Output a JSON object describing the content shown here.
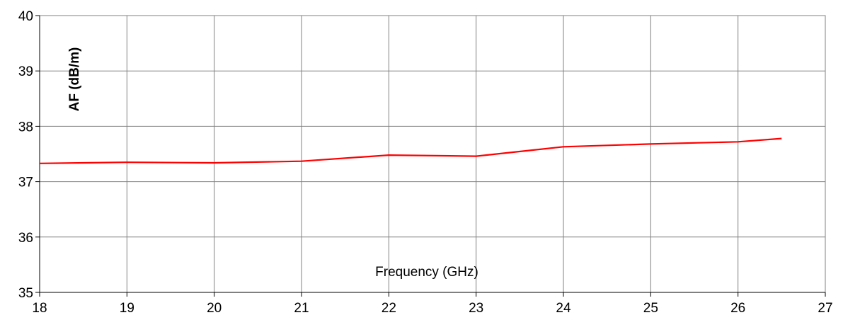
{
  "chart_data": {
    "type": "line",
    "title": "",
    "xlabel": "Frequency (GHz)",
    "ylabel": "AF (dB/m)",
    "xlim": [
      18,
      27
    ],
    "ylim": [
      35,
      40
    ],
    "x_ticks": [
      18,
      19,
      20,
      21,
      22,
      23,
      24,
      25,
      26,
      27
    ],
    "y_ticks": [
      35,
      36,
      37,
      38,
      39,
      40
    ],
    "grid": true,
    "legend": "none",
    "series": [
      {
        "color": "#ff0000",
        "x": [
          18,
          19,
          20,
          21,
          22,
          23,
          24,
          25,
          26,
          26.5
        ],
        "y": [
          37.33,
          37.35,
          37.34,
          37.37,
          37.48,
          37.46,
          37.63,
          37.68,
          37.72,
          37.78
        ]
      }
    ]
  }
}
